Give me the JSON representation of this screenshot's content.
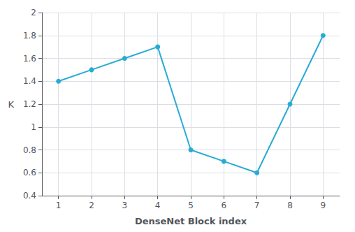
{
  "chart_data": {
    "type": "line",
    "xlabel": "DenseNet Block index",
    "ylabel": "K",
    "x": [
      1,
      2,
      3,
      4,
      5,
      6,
      7,
      8,
      9
    ],
    "values": [
      1.4,
      1.5,
      1.6,
      1.7,
      0.8,
      0.7,
      0.6,
      1.2,
      1.8
    ],
    "color": "#29ABD4",
    "marker": "circle",
    "xlim": [
      0.5,
      9.5
    ],
    "xticks": [
      1,
      2,
      3,
      4,
      5,
      6,
      7,
      8,
      9
    ],
    "ylim": [
      0.4,
      2.0
    ],
    "yticks": [
      0.4,
      0.6,
      0.8,
      1,
      1.2,
      1.4,
      1.6,
      1.8,
      2
    ],
    "grid": true
  }
}
